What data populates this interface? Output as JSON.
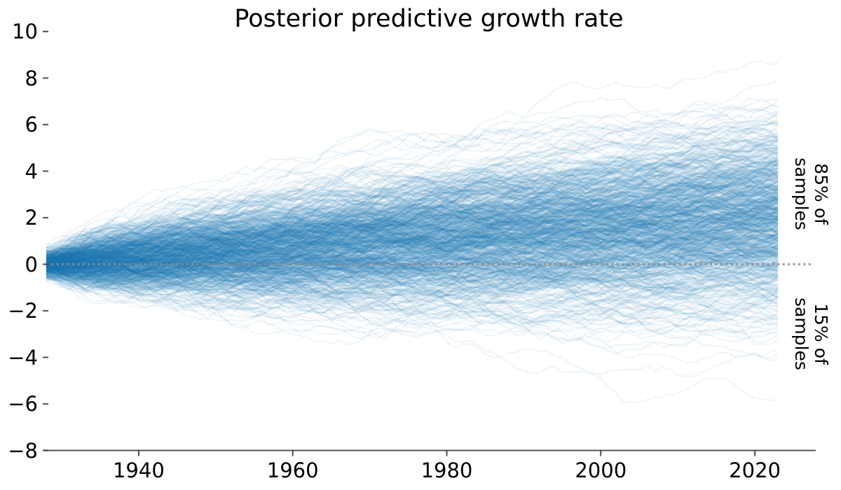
{
  "chart_data": {
    "type": "line",
    "subtype": "posterior-spaghetti-ensemble",
    "title": "Posterior predictive growth rate",
    "x_axis": {
      "start_year": 1928,
      "end_year": 2023,
      "ticks": [
        {
          "value": 1940,
          "label": "1940"
        },
        {
          "value": 1960,
          "label": "1960"
        },
        {
          "value": 1980,
          "label": "1980"
        },
        {
          "value": 2000,
          "label": "2000"
        },
        {
          "value": 2020,
          "label": "2020"
        }
      ]
    },
    "y_axis": {
      "lim": [
        -8,
        10
      ],
      "ticks": [
        {
          "value": 10,
          "label": "10"
        },
        {
          "value": 8,
          "label": "8"
        },
        {
          "value": 6,
          "label": "6"
        },
        {
          "value": 4,
          "label": "4"
        },
        {
          "value": 2,
          "label": "2"
        },
        {
          "value": 0,
          "label": "0"
        },
        {
          "value": -2,
          "label": "−2"
        },
        {
          "value": -4,
          "label": "−4"
        },
        {
          "value": -6,
          "label": "−6"
        },
        {
          "value": -8,
          "label": "−8"
        }
      ]
    },
    "zero_line": {
      "value": 0,
      "style": "dotted",
      "color": "#8c8c8c"
    },
    "annotations": [
      {
        "name": "above-zero-share",
        "line1": "85% of",
        "line2": "samples",
        "share": 0.85
      },
      {
        "name": "below-zero-share",
        "line1": "15% of",
        "line2": "samples",
        "share": 0.15
      }
    ],
    "series_color": "#1f77b4",
    "series_alpha": 0.1,
    "axis_color": "#1a1a1a",
    "ensemble": {
      "n_lines": 850,
      "seed": 42,
      "start_sd": 0.28,
      "drift_per_year": 0.0215,
      "noise_sd_per_year": 0.14,
      "noise_autocorr": 0.35,
      "step_years": 1,
      "end_spread_sd": 2.0,
      "end_mean": 2.0
    }
  }
}
